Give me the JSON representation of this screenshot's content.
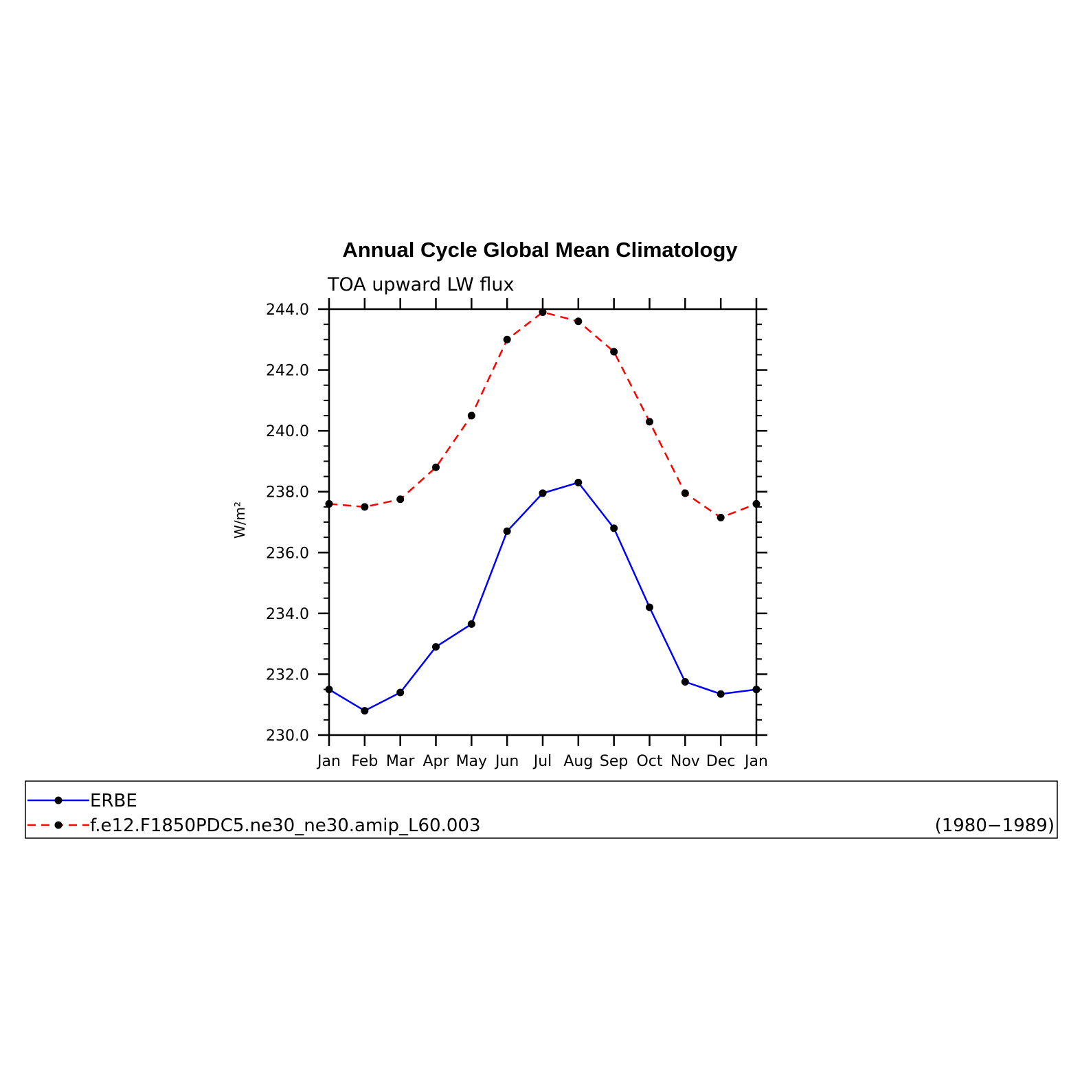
{
  "chart_data": {
    "type": "line",
    "title": "Annual Cycle Global Mean Climatology",
    "subtitle": "TOA upward LW flux",
    "ylabel": "W/m²",
    "xlabel": "",
    "categories": [
      "Jan",
      "Feb",
      "Mar",
      "Apr",
      "May",
      "Jun",
      "Jul",
      "Aug",
      "Sep",
      "Oct",
      "Nov",
      "Dec",
      "Jan"
    ],
    "ylim": [
      230,
      244
    ],
    "yticks": [
      "230.0",
      "232.0",
      "234.0",
      "236.0",
      "238.0",
      "240.0",
      "242.0",
      "244.0"
    ],
    "grid": false,
    "legend_position": "bottom",
    "legend_period": "(1980−1989)",
    "series": [
      {
        "name": "ERBE",
        "color": "#0000ff",
        "dash": "solid",
        "marker": "circle",
        "values": [
          231.5,
          230.8,
          231.4,
          232.9,
          233.65,
          236.7,
          237.95,
          238.3,
          236.8,
          234.2,
          231.75,
          231.35,
          231.5
        ]
      },
      {
        "name": "f.e12.F1850PDC5.ne30_ne30.amip_L60.003",
        "color": "#ff0000",
        "dash": "dashed",
        "marker": "circle",
        "values": [
          237.6,
          237.5,
          237.75,
          238.8,
          240.5,
          243.0,
          243.9,
          243.6,
          242.6,
          240.3,
          237.95,
          237.15,
          237.6
        ]
      }
    ]
  }
}
